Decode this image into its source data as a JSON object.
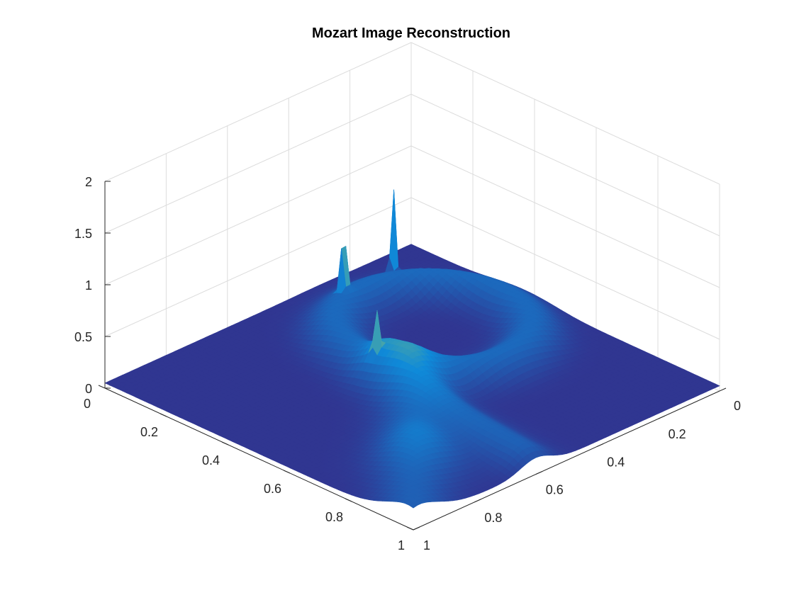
{
  "chart_data": {
    "type": "surface",
    "title": "Mozart Image Reconstruction",
    "xlabel": "",
    "ylabel": "",
    "zlabel": "",
    "xlim": [
      0,
      1
    ],
    "ylim": [
      0,
      1
    ],
    "zlim": [
      0,
      2
    ],
    "x_ticks": [
      "0",
      "0.2",
      "0.4",
      "0.6",
      "0.8",
      "1"
    ],
    "y_ticks": [
      "0",
      "0.2",
      "0.4",
      "0.6",
      "0.8",
      "1"
    ],
    "z_ticks": [
      "0",
      "0.5",
      "1",
      "1.5",
      "2"
    ],
    "grid": true,
    "colormap": "parula",
    "base_level": 0.05,
    "features": [
      {
        "kind": "ring",
        "x": 0.37,
        "y": 0.3,
        "rx": 0.23,
        "ry": 0.22,
        "width": 0.05,
        "height": 0.22
      },
      {
        "kind": "ridge",
        "x": 0.45,
        "y": 0.55,
        "x2": 0.95,
        "y2": 0.6,
        "width": 0.05,
        "height": 0.18
      },
      {
        "kind": "ridge",
        "x": 0.55,
        "y": 0.55,
        "x2": 0.98,
        "y2": 0.98,
        "width": 0.06,
        "height": 0.18
      },
      {
        "kind": "blob",
        "x": 0.8,
        "y": 0.75,
        "width": 0.08,
        "height": 0.12
      }
    ],
    "peaks": [
      {
        "x": 0.1,
        "y": 0.16,
        "z": 0.95
      },
      {
        "x": 0.13,
        "y": 0.35,
        "z": 0.9
      },
      {
        "x": 0.44,
        "y": 0.56,
        "z": 0.5
      }
    ],
    "colors": {
      "low": "#352a87",
      "mid": "#0f8ad9",
      "high": "#f9fb0e"
    }
  }
}
